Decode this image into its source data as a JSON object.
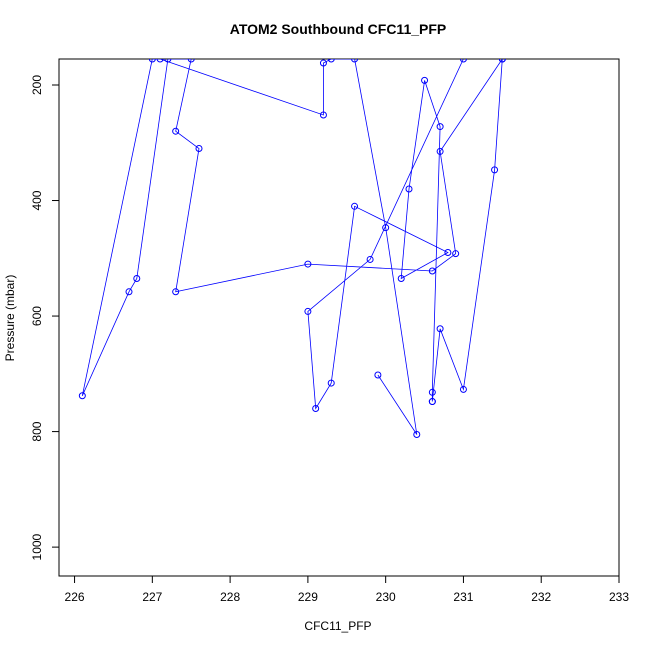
{
  "chart_data": {
    "type": "line",
    "title": "ATOM2 Southbound CFC11_PFP",
    "xlabel": "CFC11_PFP",
    "ylabel": "Pressure (mbar)",
    "xlim": [
      225.8,
      233.0
    ],
    "ylim": [
      1050,
      155
    ],
    "y_reversed": true,
    "grid": false,
    "xticks": [
      226,
      227,
      228,
      229,
      230,
      231,
      232,
      233
    ],
    "yticks": [
      200,
      400,
      600,
      800,
      1000
    ],
    "color": "#0000ff",
    "points": [
      {
        "x": 231.0,
        "y": 155
      },
      {
        "x": 229.8,
        "y": 502
      },
      {
        "x": 229.0,
        "y": 592
      },
      {
        "x": 229.1,
        "y": 760
      },
      {
        "x": 229.3,
        "y": 716
      },
      {
        "x": 229.6,
        "y": 410
      },
      {
        "x": 230.8,
        "y": 490
      },
      {
        "x": 230.2,
        "y": 535
      },
      {
        "x": 230.3,
        "y": 380
      },
      {
        "x": 230.5,
        "y": 192
      },
      {
        "x": 230.7,
        "y": 272
      },
      {
        "x": 230.6,
        "y": 732
      },
      {
        "x": 230.6,
        "y": 748
      },
      {
        "x": 230.6,
        "y": 748
      },
      {
        "x": 230.7,
        "y": 622
      },
      {
        "x": 231.0,
        "y": 727
      },
      {
        "x": 231.4,
        "y": 347
      },
      {
        "x": 231.5,
        "y": 155
      },
      {
        "x": 231.5,
        "y": 155
      },
      {
        "x": 230.7,
        "y": 315
      },
      {
        "x": 230.9,
        "y": 492
      },
      {
        "x": 230.6,
        "y": 522
      },
      {
        "x": 229.0,
        "y": 510
      },
      {
        "x": 227.3,
        "y": 558
      },
      {
        "x": 227.6,
        "y": 310
      },
      {
        "x": 227.3,
        "y": 280
      },
      {
        "x": 227.5,
        "y": 155
      },
      {
        "x": 227.2,
        "y": 155
      },
      {
        "x": 226.8,
        "y": 535
      },
      {
        "x": 226.7,
        "y": 558
      },
      {
        "x": 226.1,
        "y": 738
      },
      {
        "x": 227.0,
        "y": 155
      },
      {
        "x": 227.1,
        "y": 155
      },
      {
        "x": 229.2,
        "y": 252
      },
      {
        "x": 229.2,
        "y": 162
      },
      {
        "x": 229.3,
        "y": 155
      },
      {
        "x": 229.6,
        "y": 155
      },
      {
        "x": 230.0,
        "y": 447
      },
      {
        "x": 230.4,
        "y": 805
      },
      {
        "x": 229.9,
        "y": 702
      }
    ]
  }
}
